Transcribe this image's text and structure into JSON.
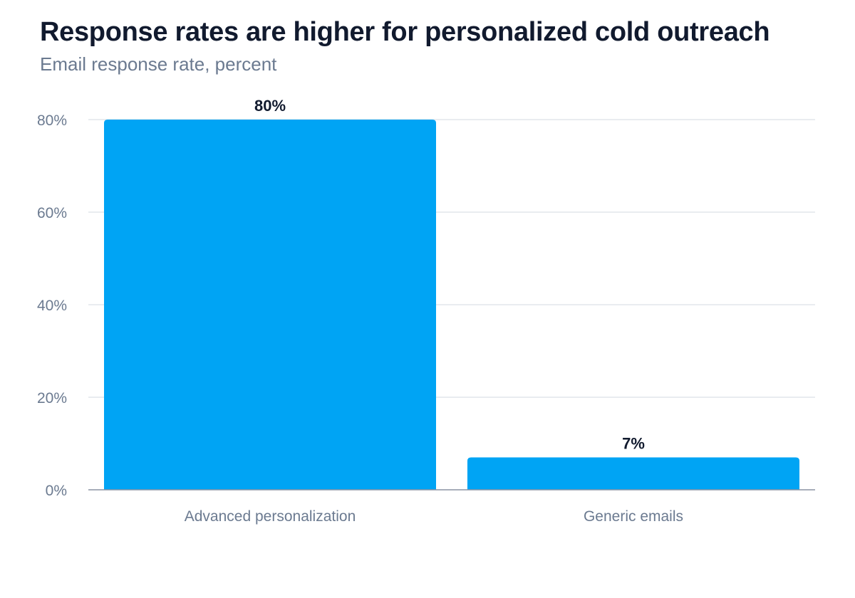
{
  "chart": {
    "title": "Response rates are higher for personalized cold outreach",
    "subtitle": "Email response rate, percent"
  },
  "chart_data": {
    "type": "bar",
    "title": "Response rates are higher for personalized cold outreach",
    "subtitle": "Email response rate, percent",
    "categories": [
      "Advanced personalization",
      "Generic emails"
    ],
    "values": [
      80,
      7
    ],
    "value_labels": [
      "80%",
      "7%"
    ],
    "xlabel": "",
    "ylabel": "",
    "ylim": [
      0,
      80
    ],
    "yticks": [
      0,
      20,
      40,
      60,
      80
    ],
    "ytick_labels": [
      "0%",
      "20%",
      "40%",
      "60%",
      "80%"
    ],
    "grid": true,
    "legend": "none",
    "colors": {
      "bar": "#00a4f4",
      "grid": "#e2e6ec",
      "axis": "#8a93a3",
      "text_muted": "#6b7a90",
      "text_strong": "#111a2e"
    }
  }
}
